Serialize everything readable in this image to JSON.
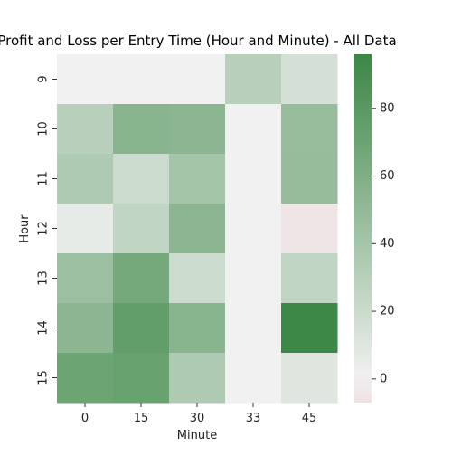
{
  "chart_data": {
    "type": "heatmap",
    "title": "Profit and Loss per Entry Time (Hour and Minute) - All Data",
    "xlabel": "Minute",
    "ylabel": "Hour",
    "x_categories": [
      "0",
      "15",
      "30",
      "33",
      "45"
    ],
    "y_categories": [
      "9",
      "10",
      "11",
      "12",
      "13",
      "14",
      "15"
    ],
    "values": [
      [
        0,
        0,
        0,
        30,
        15
      ],
      [
        30,
        55,
        53,
        0,
        47
      ],
      [
        35,
        20,
        40,
        0,
        48
      ],
      [
        5,
        25,
        53,
        0,
        -5
      ],
      [
        45,
        65,
        20,
        0,
        25
      ],
      [
        53,
        75,
        55,
        0,
        95
      ],
      [
        70,
        72,
        35,
        0,
        10
      ]
    ],
    "colorbar": {
      "min": -7,
      "max": 96,
      "ticks": [
        "0",
        "20",
        "40",
        "60",
        "80"
      ],
      "tick_values": [
        0,
        20,
        40,
        60,
        80
      ]
    },
    "colors": {
      "negative": "#f0e0e2",
      "center": "#f1f1f1",
      "positive": "#3a8744"
    }
  }
}
